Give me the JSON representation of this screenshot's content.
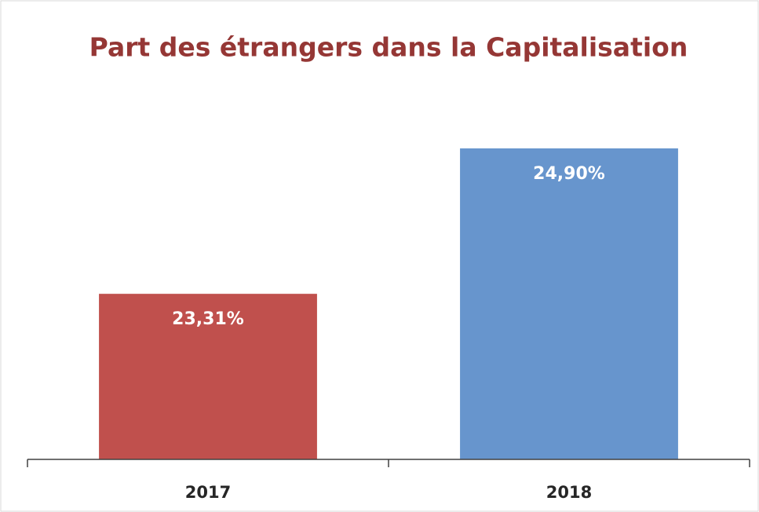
{
  "chart_data": {
    "type": "bar",
    "title": "Part des étrangers dans la Capitalisation",
    "categories": [
      "2017",
      "2018"
    ],
    "values": [
      23.31,
      24.9
    ],
    "value_labels": [
      "23,31%",
      "24,90%"
    ],
    "colors": [
      "#c0504d",
      "#6795cd"
    ],
    "ylim": [
      21.5,
      25.2
    ]
  }
}
